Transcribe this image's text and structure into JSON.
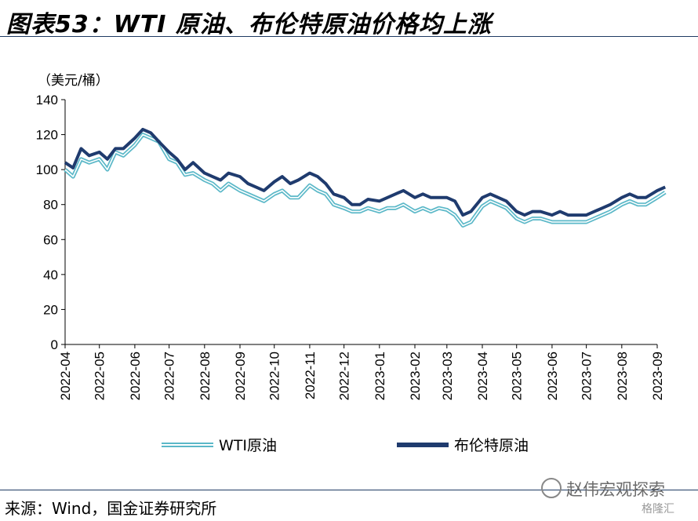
{
  "header": {
    "title": "图表53：WTI 原油、布伦特原油价格均上涨"
  },
  "footer": {
    "source": "来源：Wind，国金证券研究所",
    "watermark": "赵伟宏观探索",
    "logo": "格隆汇"
  },
  "chart_data": {
    "type": "line",
    "ylabel": "（美元/桶）",
    "ylim": [
      0,
      140
    ],
    "yticks": [
      0,
      20,
      40,
      60,
      80,
      100,
      120,
      140
    ],
    "x_categories": [
      "2022-04",
      "2022-05",
      "2022-06",
      "2022-07",
      "2022-08",
      "2022-09",
      "2022-10",
      "2022-11",
      "2022-12",
      "2023-01",
      "2023-02",
      "2023-03",
      "2023-04",
      "2023-05",
      "2023-06",
      "2023-07",
      "2023-08",
      "2023-09"
    ],
    "legend": {
      "placement": "bottom"
    },
    "grid": false,
    "series": [
      {
        "name": "WTI原油",
        "color": "#5bb8c8",
        "style": "double-line",
        "x": [
          "2022-04-01",
          "2022-04-08",
          "2022-04-15",
          "2022-04-22",
          "2022-05-01",
          "2022-05-08",
          "2022-05-15",
          "2022-05-22",
          "2022-06-01",
          "2022-06-08",
          "2022-06-15",
          "2022-06-22",
          "2022-07-01",
          "2022-07-08",
          "2022-07-15",
          "2022-07-22",
          "2022-08-01",
          "2022-08-08",
          "2022-08-15",
          "2022-08-22",
          "2022-09-01",
          "2022-09-08",
          "2022-09-15",
          "2022-09-22",
          "2022-10-01",
          "2022-10-08",
          "2022-10-15",
          "2022-10-22",
          "2022-11-01",
          "2022-11-08",
          "2022-11-15",
          "2022-11-22",
          "2022-12-01",
          "2022-12-08",
          "2022-12-15",
          "2022-12-22",
          "2023-01-01",
          "2023-01-08",
          "2023-01-15",
          "2023-01-22",
          "2023-02-01",
          "2023-02-08",
          "2023-02-15",
          "2023-02-22",
          "2023-03-01",
          "2023-03-08",
          "2023-03-15",
          "2023-03-22",
          "2023-04-01",
          "2023-04-08",
          "2023-04-15",
          "2023-04-22",
          "2023-05-01",
          "2023-05-08",
          "2023-05-15",
          "2023-05-22",
          "2023-06-01",
          "2023-06-08",
          "2023-06-15",
          "2023-06-22",
          "2023-07-01",
          "2023-07-08",
          "2023-07-15",
          "2023-07-22",
          "2023-08-01",
          "2023-08-08",
          "2023-08-15",
          "2023-08-22",
          "2023-09-01",
          "2023-09-08"
        ],
        "y": [
          100,
          96,
          106,
          104,
          106,
          100,
          110,
          108,
          114,
          120,
          118,
          116,
          106,
          104,
          97,
          98,
          94,
          92,
          88,
          92,
          88,
          86,
          84,
          82,
          86,
          88,
          84,
          84,
          91,
          88,
          86,
          80,
          78,
          76,
          76,
          78,
          76,
          78,
          78,
          80,
          76,
          78,
          76,
          78,
          77,
          74,
          68,
          70,
          79,
          82,
          80,
          78,
          72,
          70,
          72,
          72,
          70,
          70,
          70,
          70,
          70,
          72,
          74,
          76,
          80,
          82,
          80,
          80,
          84,
          87
        ]
      },
      {
        "name": "布伦特原油",
        "color": "#1f3b6e",
        "style": "solid",
        "x": [
          "2022-04-01",
          "2022-04-08",
          "2022-04-15",
          "2022-04-22",
          "2022-05-01",
          "2022-05-08",
          "2022-05-15",
          "2022-05-22",
          "2022-06-01",
          "2022-06-08",
          "2022-06-15",
          "2022-06-22",
          "2022-07-01",
          "2022-07-08",
          "2022-07-15",
          "2022-07-22",
          "2022-08-01",
          "2022-08-08",
          "2022-08-15",
          "2022-08-22",
          "2022-09-01",
          "2022-09-08",
          "2022-09-15",
          "2022-09-22",
          "2022-10-01",
          "2022-10-08",
          "2022-10-15",
          "2022-10-22",
          "2022-11-01",
          "2022-11-08",
          "2022-11-15",
          "2022-11-22",
          "2022-12-01",
          "2022-12-08",
          "2022-12-15",
          "2022-12-22",
          "2023-01-01",
          "2023-01-08",
          "2023-01-15",
          "2023-01-22",
          "2023-02-01",
          "2023-02-08",
          "2023-02-15",
          "2023-02-22",
          "2023-03-01",
          "2023-03-08",
          "2023-03-15",
          "2023-03-22",
          "2023-04-01",
          "2023-04-08",
          "2023-04-15",
          "2023-04-22",
          "2023-05-01",
          "2023-05-08",
          "2023-05-15",
          "2023-05-22",
          "2023-06-01",
          "2023-06-08",
          "2023-06-15",
          "2023-06-22",
          "2023-07-01",
          "2023-07-08",
          "2023-07-15",
          "2023-07-22",
          "2023-08-01",
          "2023-08-08",
          "2023-08-15",
          "2023-08-22",
          "2023-09-01",
          "2023-09-08"
        ],
        "y": [
          104,
          101,
          112,
          108,
          110,
          106,
          112,
          112,
          118,
          123,
          121,
          116,
          110,
          106,
          100,
          104,
          98,
          96,
          94,
          98,
          96,
          92,
          90,
          88,
          93,
          96,
          92,
          94,
          98,
          96,
          92,
          86,
          84,
          80,
          80,
          83,
          82,
          84,
          86,
          88,
          84,
          86,
          84,
          84,
          84,
          82,
          74,
          76,
          84,
          86,
          84,
          82,
          76,
          74,
          76,
          76,
          74,
          76,
          74,
          74,
          74,
          76,
          78,
          80,
          84,
          86,
          84,
          84,
          88,
          90
        ]
      }
    ]
  }
}
